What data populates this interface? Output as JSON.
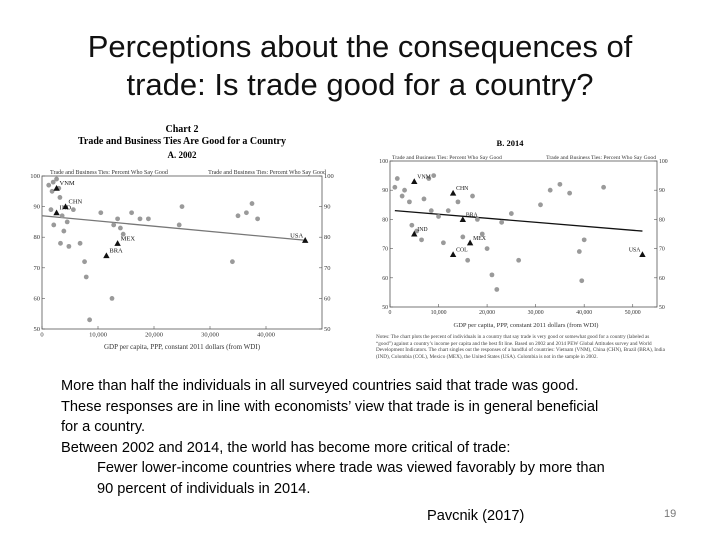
{
  "slide": {
    "title_line1": "Perceptions about the consequences of",
    "title_line2": "trade: Is trade good for a country?",
    "page_number": "19",
    "citation": "Pavcnik (2017)",
    "bullets": [
      "More than half the individuals in all surveyed countries said that trade was good.",
      "These responses are in line with economists’ view that trade is in general beneficial",
      "for a country.",
      "Between 2002 and 2014, the world has become more critical of trade:"
    ],
    "sub_bullets": [
      "Fewer lower-income countries where trade was viewed favorably by more than",
      "90 percent of individuals in 2014."
    ]
  },
  "chart_heading": {
    "chart_label": "Chart 2",
    "chart_title": "Trade and Business Ties Are Good for a Country"
  },
  "notes": "Notes: The chart plots the percent of individuals in a country that say trade is very good or somewhat good for a country (labeled as “good”) against a country’s income per capita and the best fit line. Based on 2002 and 2014 PEW Global Attitudes survey and World Development Indicators. The chart singles out the responses of a handful of countries: Vietnam (VNM), China (CHN), Brazil (BRA), India (IND), Colombia (COL), Mexico (MEX), the United States (USA). Colombia is not in the sample in 2002.",
  "chart_data": [
    {
      "type": "scatter",
      "title": "A. 2002",
      "ylabel_left": "Trade and Business Ties: Percent Who Say Good",
      "ylabel_right": "Trade and Business Ties: Percent Who Say Good",
      "xlabel": "GDP per capita, PPP, constant 2011 dollars (from WDI)",
      "xlim": [
        0,
        50000
      ],
      "ylim": [
        50,
        100
      ],
      "x_ticks": [
        "0",
        "10,000",
        "20,000",
        "30,000",
        "40,000"
      ],
      "x_tick_values": [
        0,
        10000,
        20000,
        30000,
        40000
      ],
      "y_ticks": [
        "50",
        "60",
        "70",
        "80",
        "90",
        "100"
      ],
      "y_tick_values": [
        50,
        60,
        70,
        80,
        90,
        100
      ],
      "fit_line": [
        [
          0,
          87
        ],
        [
          47000,
          79
        ]
      ],
      "labeled_points": [
        {
          "label": "VNM",
          "x": 2600,
          "y": 96
        },
        {
          "label": "CHN",
          "x": 4200,
          "y": 90
        },
        {
          "label": "IND",
          "x": 2600,
          "y": 88
        },
        {
          "label": "MEX",
          "x": 13500,
          "y": 78
        },
        {
          "label": "BRA",
          "x": 11500,
          "y": 74
        },
        {
          "label": "USA",
          "x": 47000,
          "y": 79
        }
      ],
      "points": [
        [
          1200,
          97
        ],
        [
          1800,
          95
        ],
        [
          2000,
          98
        ],
        [
          2600,
          99
        ],
        [
          3000,
          96
        ],
        [
          3200,
          93
        ],
        [
          1600,
          89
        ],
        [
          3600,
          87
        ],
        [
          4500,
          85
        ],
        [
          2100,
          84
        ],
        [
          3900,
          82
        ],
        [
          3300,
          78
        ],
        [
          4800,
          77
        ],
        [
          5600,
          89
        ],
        [
          6800,
          78
        ],
        [
          7600,
          72
        ],
        [
          7900,
          67
        ],
        [
          8500,
          53
        ],
        [
          10500,
          88
        ],
        [
          12800,
          84
        ],
        [
          13500,
          86
        ],
        [
          14000,
          83
        ],
        [
          14500,
          81
        ],
        [
          16000,
          88
        ],
        [
          17500,
          86
        ],
        [
          24500,
          84
        ],
        [
          25000,
          90
        ],
        [
          34000,
          72
        ],
        [
          35000,
          87
        ],
        [
          36500,
          88
        ],
        [
          37500,
          91
        ],
        [
          38500,
          86
        ],
        [
          12500,
          60
        ],
        [
          19000,
          86
        ]
      ]
    },
    {
      "type": "scatter",
      "title": "B. 2014",
      "ylabel_left": "Trade and Business Ties: Percent Who Say Good",
      "ylabel_right": "Trade and Business Ties: Percent Who Say Good",
      "xlabel": "GDP per capita, PPP, constant 2011 dollars (from WDI)",
      "xlim": [
        0,
        55000
      ],
      "ylim": [
        50,
        100
      ],
      "x_ticks": [
        "0",
        "10,000",
        "20,000",
        "30,000",
        "40,000",
        "50,000"
      ],
      "x_tick_values": [
        0,
        10000,
        20000,
        30000,
        40000,
        50000
      ],
      "y_ticks": [
        "50",
        "60",
        "70",
        "80",
        "90",
        "100"
      ],
      "y_tick_values": [
        50,
        60,
        70,
        80,
        90,
        100
      ],
      "fit_line": [
        [
          1000,
          83
        ],
        [
          52000,
          76
        ]
      ],
      "labeled_points": [
        {
          "label": "VNM",
          "x": 5000,
          "y": 93
        },
        {
          "label": "CHN",
          "x": 13000,
          "y": 89
        },
        {
          "label": "BRA",
          "x": 15000,
          "y": 80
        },
        {
          "label": "IND",
          "x": 5000,
          "y": 75
        },
        {
          "label": "MEX",
          "x": 16500,
          "y": 72
        },
        {
          "label": "COL",
          "x": 13000,
          "y": 68
        },
        {
          "label": "USA",
          "x": 52000,
          "y": 68
        }
      ],
      "points": [
        [
          1000,
          91
        ],
        [
          1500,
          94
        ],
        [
          2500,
          88
        ],
        [
          3000,
          90
        ],
        [
          4000,
          86
        ],
        [
          4500,
          78
        ],
        [
          5500,
          76
        ],
        [
          6500,
          73
        ],
        [
          7000,
          87
        ],
        [
          8000,
          94
        ],
        [
          8500,
          83
        ],
        [
          9000,
          95
        ],
        [
          10000,
          81
        ],
        [
          11000,
          72
        ],
        [
          12000,
          83
        ],
        [
          14000,
          86
        ],
        [
          15000,
          74
        ],
        [
          16000,
          66
        ],
        [
          17000,
          88
        ],
        [
          18000,
          80
        ],
        [
          19000,
          75
        ],
        [
          20000,
          70
        ],
        [
          21000,
          61
        ],
        [
          22000,
          56
        ],
        [
          23000,
          79
        ],
        [
          25000,
          82
        ],
        [
          26500,
          66
        ],
        [
          31000,
          85
        ],
        [
          33000,
          90
        ],
        [
          35000,
          92
        ],
        [
          37000,
          89
        ],
        [
          39000,
          69
        ],
        [
          40000,
          73
        ],
        [
          39500,
          59
        ],
        [
          44000,
          91
        ]
      ]
    }
  ]
}
